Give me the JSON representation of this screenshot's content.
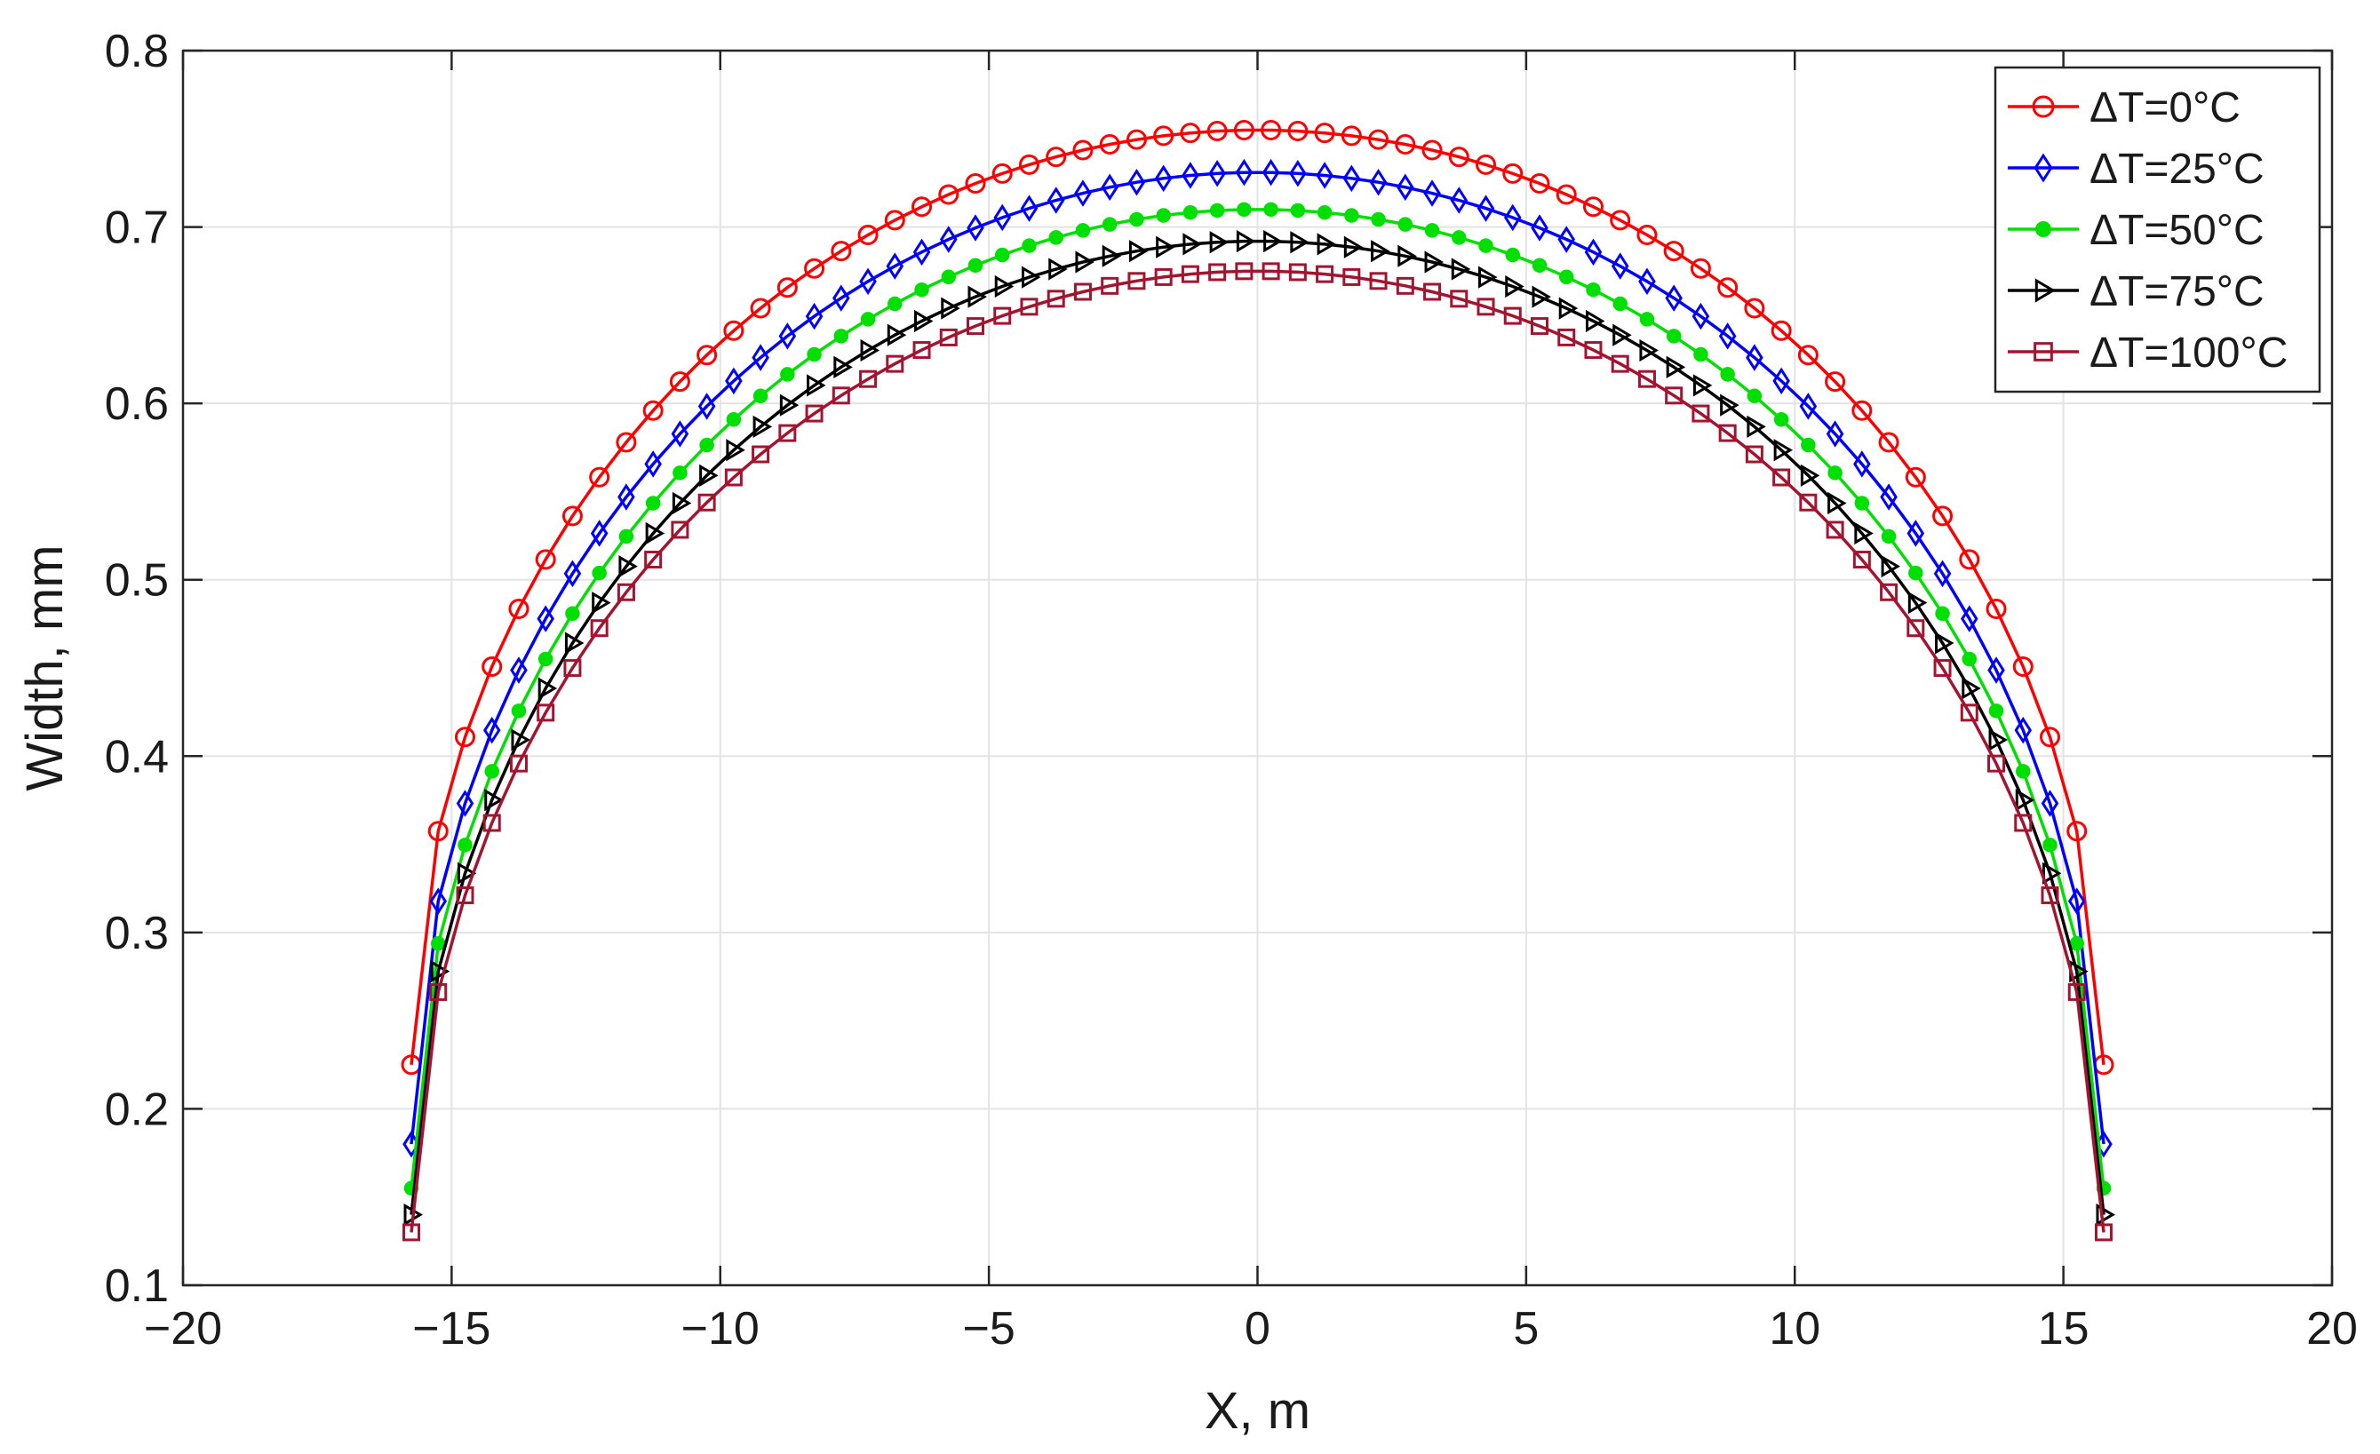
{
  "chart_data": {
    "type": "line",
    "title": "",
    "xlabel": "X, m",
    "ylabel": "Width, mm",
    "xlim": [
      -20,
      20
    ],
    "ylim": [
      0.1,
      0.8
    ],
    "xticks": [
      -20,
      -15,
      -10,
      -5,
      0,
      5,
      10,
      15,
      20
    ],
    "yticks": [
      0.1,
      0.2,
      0.3,
      0.4,
      0.5,
      0.6,
      0.7,
      0.8
    ],
    "xtick_labels": [
      "−20",
      "−15",
      "−10",
      "−5",
      "0",
      "5",
      "10",
      "15",
      "20"
    ],
    "ytick_labels": [
      "0.1",
      "0.2",
      "0.3",
      "0.4",
      "0.5",
      "0.6",
      "0.7",
      "0.8"
    ],
    "grid": true,
    "legend_position": "top-right",
    "half_length": 15.75,
    "num_points": 64,
    "series": [
      {
        "name": "ΔT=0°C",
        "color": "#ff0000",
        "marker": "circle",
        "peak": 0.755,
        "end": 0.225
      },
      {
        "name": "ΔT=25°C",
        "color": "#0000ff",
        "marker": "diamond",
        "peak": 0.731,
        "end": 0.18
      },
      {
        "name": "ΔT=50°C",
        "color": "#00e000",
        "marker": "filled-circle",
        "peak": 0.71,
        "end": 0.155
      },
      {
        "name": "ΔT=75°C",
        "color": "#000000",
        "marker": "triangle-right",
        "peak": 0.692,
        "end": 0.14
      },
      {
        "name": "ΔT=100°C",
        "color": "#a2142f",
        "marker": "square",
        "peak": 0.675,
        "end": 0.13
      }
    ]
  }
}
